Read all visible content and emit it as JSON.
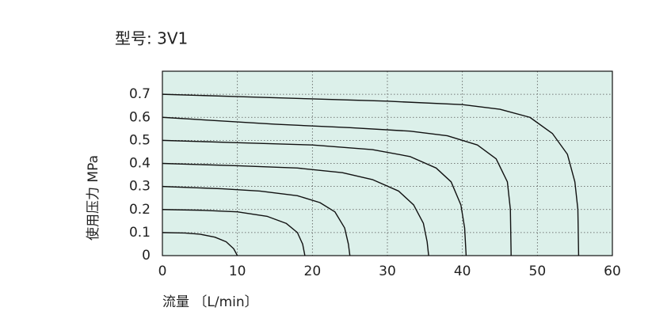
{
  "chart_data": {
    "type": "line",
    "title": "型号: 3V1",
    "x_label": "流量 〔L/min〕",
    "y_label": "使用压力  MPa",
    "xlim": [
      0,
      60
    ],
    "ylim": [
      0,
      0.8
    ],
    "xticks": [
      0,
      10,
      20,
      30,
      40,
      50,
      60
    ],
    "yticks": [
      0,
      0.1,
      0.2,
      0.3,
      0.4,
      0.5,
      0.6,
      0.7
    ],
    "grid": true,
    "background": "#dcf0ea",
    "color": "#111111",
    "series": [
      {
        "x": [
          0,
          3,
          5,
          7,
          8.5,
          9.5,
          10
        ],
        "values": [
          0.1,
          0.098,
          0.093,
          0.08,
          0.06,
          0.03,
          0
        ]
      },
      {
        "x": [
          0,
          5,
          10,
          14,
          16.5,
          18,
          18.7,
          19
        ],
        "values": [
          0.2,
          0.197,
          0.19,
          0.17,
          0.14,
          0.1,
          0.05,
          0
        ]
      },
      {
        "x": [
          0,
          8,
          13,
          18,
          21,
          23,
          24.3,
          24.8,
          25
        ],
        "values": [
          0.3,
          0.29,
          0.28,
          0.26,
          0.23,
          0.19,
          0.12,
          0.05,
          0
        ]
      },
      {
        "x": [
          0,
          10,
          18,
          24,
          28,
          31.5,
          33.5,
          34.8,
          35.3,
          35.5
        ],
        "values": [
          0.4,
          0.39,
          0.38,
          0.36,
          0.33,
          0.28,
          0.22,
          0.14,
          0.06,
          0
        ]
      },
      {
        "x": [
          0,
          10,
          20,
          28,
          33,
          36.5,
          38.5,
          39.8,
          40.3,
          40.5
        ],
        "values": [
          0.5,
          0.49,
          0.48,
          0.46,
          0.43,
          0.38,
          0.32,
          0.22,
          0.12,
          0
        ]
      },
      {
        "x": [
          0,
          15,
          25,
          33,
          38,
          42,
          44.5,
          46,
          46.4,
          46.5
        ],
        "values": [
          0.6,
          0.57,
          0.555,
          0.54,
          0.52,
          0.48,
          0.42,
          0.32,
          0.2,
          0
        ]
      },
      {
        "x": [
          0,
          10,
          20,
          30,
          40,
          45,
          49,
          52,
          54,
          55,
          55.4,
          55.5
        ],
        "values": [
          0.7,
          0.69,
          0.68,
          0.67,
          0.655,
          0.635,
          0.6,
          0.53,
          0.44,
          0.32,
          0.2,
          0
        ]
      }
    ]
  }
}
